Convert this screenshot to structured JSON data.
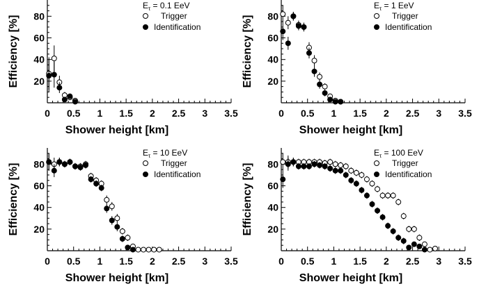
{
  "chart_data": [
    {
      "type": "scatter",
      "legend_title": "E",
      "legend_subscript": "τ",
      "legend_value": " = 0.1 EeV",
      "legend_position": "top-right",
      "xlabel": "Shower height [km]",
      "ylabel": "Efficiency [%]",
      "xlim": [
        0,
        3.5
      ],
      "ylim": [
        0,
        95
      ],
      "xticks": [
        "0",
        "0.5",
        "1",
        "1.5",
        "2",
        "2.5",
        "3",
        "3.5"
      ],
      "yticks": [
        "20",
        "40",
        "60",
        "80"
      ],
      "series": [
        {
          "name": "Trigger",
          "marker": "open-circle",
          "points": [
            [
              0.03,
              27,
              15
            ],
            [
              0.13,
              41,
              12
            ],
            [
              0.23,
              19,
              6
            ],
            [
              0.33,
              7,
              3
            ],
            [
              0.43,
              5,
              2
            ],
            [
              0.53,
              2,
              1
            ]
          ]
        },
        {
          "name": "Identification",
          "marker": "filled-circle",
          "points": [
            [
              0.03,
              25,
              15
            ],
            [
              0.13,
              26,
              12
            ],
            [
              0.23,
              14,
              5
            ],
            [
              0.33,
              3,
              2
            ],
            [
              0.43,
              6,
              2
            ],
            [
              0.53,
              1,
              1
            ]
          ]
        }
      ]
    },
    {
      "type": "scatter",
      "legend_title": "E",
      "legend_subscript": "τ",
      "legend_value": " =   1 EeV",
      "legend_position": "top-right",
      "xlabel": "Shower height [km]",
      "ylabel": "Efficiency [%]",
      "xlim": [
        0,
        3.5
      ],
      "ylim": [
        0,
        95
      ],
      "xticks": [
        "0",
        "0.5",
        "1",
        "1.5",
        "2",
        "2.5",
        "3",
        "3.5"
      ],
      "yticks": [
        "20",
        "40",
        "60",
        "80"
      ],
      "series": [
        {
          "name": "Trigger",
          "marker": "open-circle",
          "points": [
            [
              0.03,
              82,
              8
            ],
            [
              0.13,
              74,
              6
            ],
            [
              0.23,
              80,
              4
            ],
            [
              0.33,
              72,
              4
            ],
            [
              0.43,
              70,
              4
            ],
            [
              0.53,
              51,
              5
            ],
            [
              0.63,
              39,
              5
            ],
            [
              0.73,
              24,
              4
            ],
            [
              0.83,
              15,
              3
            ],
            [
              0.93,
              6,
              2
            ],
            [
              1.03,
              2,
              1
            ],
            [
              1.13,
              1,
              1
            ]
          ]
        },
        {
          "name": "Identification",
          "marker": "filled-circle",
          "points": [
            [
              0.03,
              66,
              8
            ],
            [
              0.13,
              55,
              6
            ],
            [
              0.23,
              80,
              4
            ],
            [
              0.33,
              71,
              4
            ],
            [
              0.43,
              70,
              4
            ],
            [
              0.53,
              46,
              5
            ],
            [
              0.63,
              29,
              5
            ],
            [
              0.73,
              17,
              4
            ],
            [
              0.83,
              9,
              3
            ],
            [
              0.93,
              3,
              2
            ],
            [
              1.03,
              1,
              1
            ],
            [
              1.13,
              1,
              1
            ]
          ]
        }
      ]
    },
    {
      "type": "scatter",
      "legend_title": "E",
      "legend_subscript": "τ",
      "legend_value": " = 10 EeV",
      "legend_position": "top-right",
      "xlabel": "Shower height [km]",
      "ylabel": "Efficiency [%]",
      "xlim": [
        0,
        3.5
      ],
      "ylim": [
        0,
        95
      ],
      "xticks": [
        "0",
        "0.5",
        "1",
        "1.5",
        "2",
        "2.5",
        "3",
        "3.5"
      ],
      "yticks": [
        "20",
        "40",
        "60",
        "80"
      ],
      "series": [
        {
          "name": "Trigger",
          "marker": "open-circle",
          "points": [
            [
              0.03,
              82,
              8
            ],
            [
              0.13,
              80,
              6
            ],
            [
              0.23,
              82,
              4
            ],
            [
              0.33,
              80,
              3
            ],
            [
              0.43,
              82,
              3
            ],
            [
              0.53,
              78,
              3
            ],
            [
              0.63,
              78,
              3
            ],
            [
              0.73,
              80,
              3
            ],
            [
              0.83,
              69,
              3
            ],
            [
              0.93,
              65,
              3
            ],
            [
              1.03,
              62,
              3
            ],
            [
              1.13,
              47,
              4
            ],
            [
              1.23,
              41,
              4
            ],
            [
              1.33,
              30,
              4
            ],
            [
              1.43,
              18,
              3
            ],
            [
              1.53,
              12,
              3
            ],
            [
              1.63,
              4,
              1
            ],
            [
              1.73,
              1,
              1
            ],
            [
              1.83,
              1,
              1
            ],
            [
              1.93,
              1,
              1
            ],
            [
              2.03,
              1,
              1
            ],
            [
              2.13,
              1,
              1
            ]
          ]
        },
        {
          "name": "Identification",
          "marker": "filled-circle",
          "points": [
            [
              0.03,
              82,
              8
            ],
            [
              0.13,
              74,
              6
            ],
            [
              0.23,
              82,
              4
            ],
            [
              0.33,
              80,
              3
            ],
            [
              0.43,
              82,
              3
            ],
            [
              0.53,
              78,
              3
            ],
            [
              0.63,
              77,
              3
            ],
            [
              0.73,
              79,
              3
            ],
            [
              0.83,
              66,
              3
            ],
            [
              0.93,
              62,
              3
            ],
            [
              1.03,
              58,
              3
            ],
            [
              1.13,
              39,
              4
            ],
            [
              1.23,
              28,
              4
            ],
            [
              1.33,
              22,
              4
            ],
            [
              1.43,
              11,
              3
            ],
            [
              1.53,
              3,
              1
            ],
            [
              1.63,
              1,
              1
            ]
          ]
        }
      ]
    },
    {
      "type": "scatter",
      "legend_title": "E",
      "legend_subscript": "τ",
      "legend_value": " = 100 EeV",
      "legend_position": "top-right",
      "xlabel": "Shower height [km]",
      "ylabel": "Efficiency [%]",
      "xlim": [
        0,
        3.5
      ],
      "ylim": [
        0,
        95
      ],
      "xticks": [
        "0",
        "0.5",
        "1",
        "1.5",
        "2",
        "2.5",
        "3",
        "3.5"
      ],
      "yticks": [
        "20",
        "40",
        "60",
        "80"
      ],
      "series": [
        {
          "name": "Trigger",
          "marker": "open-circle",
          "points": [
            [
              0.03,
              82,
              8
            ],
            [
              0.13,
              82,
              6
            ],
            [
              0.23,
              82,
              4
            ],
            [
              0.33,
              82,
              3
            ],
            [
              0.43,
              82,
              3
            ],
            [
              0.53,
              82,
              3
            ],
            [
              0.63,
              82,
              3
            ],
            [
              0.73,
              82,
              3
            ],
            [
              0.83,
              81,
              3
            ],
            [
              0.93,
              82,
              3
            ],
            [
              1.03,
              80,
              3
            ],
            [
              1.13,
              79,
              3
            ],
            [
              1.23,
              78,
              3
            ],
            [
              1.33,
              74,
              3
            ],
            [
              1.43,
              72,
              3
            ],
            [
              1.53,
              70,
              3
            ],
            [
              1.63,
              66,
              3
            ],
            [
              1.73,
              62,
              3
            ],
            [
              1.83,
              57,
              3
            ],
            [
              1.93,
              51,
              3
            ],
            [
              2.03,
              51,
              3
            ],
            [
              2.13,
              51,
              3
            ],
            [
              2.23,
              45,
              3
            ],
            [
              2.33,
              32,
              3
            ],
            [
              2.43,
              20,
              3
            ],
            [
              2.53,
              20,
              3
            ],
            [
              2.63,
              12,
              3
            ],
            [
              2.73,
              6,
              2
            ],
            [
              2.83,
              1,
              1
            ],
            [
              2.93,
              2,
              1
            ]
          ]
        },
        {
          "name": "Identification",
          "marker": "filled-circle",
          "points": [
            [
              0.03,
              66,
              8
            ],
            [
              0.13,
              80,
              6
            ],
            [
              0.23,
              82,
              4
            ],
            [
              0.33,
              78,
              3
            ],
            [
              0.43,
              78,
              3
            ],
            [
              0.53,
              78,
              3
            ],
            [
              0.63,
              80,
              3
            ],
            [
              0.73,
              79,
              3
            ],
            [
              0.83,
              78,
              3
            ],
            [
              0.93,
              76,
              3
            ],
            [
              1.03,
              74,
              3
            ],
            [
              1.13,
              74,
              3
            ],
            [
              1.23,
              70,
              3
            ],
            [
              1.33,
              65,
              3
            ],
            [
              1.43,
              62,
              3
            ],
            [
              1.53,
              56,
              3
            ],
            [
              1.63,
              51,
              3
            ],
            [
              1.73,
              43,
              3
            ],
            [
              1.83,
              37,
              3
            ],
            [
              1.93,
              31,
              3
            ],
            [
              2.03,
              23,
              3
            ],
            [
              2.13,
              18,
              3
            ],
            [
              2.23,
              12,
              3
            ],
            [
              2.33,
              9,
              3
            ],
            [
              2.43,
              3,
              2
            ],
            [
              2.53,
              6,
              2
            ],
            [
              2.63,
              4,
              2
            ],
            [
              2.73,
              1,
              1
            ]
          ]
        }
      ]
    }
  ]
}
